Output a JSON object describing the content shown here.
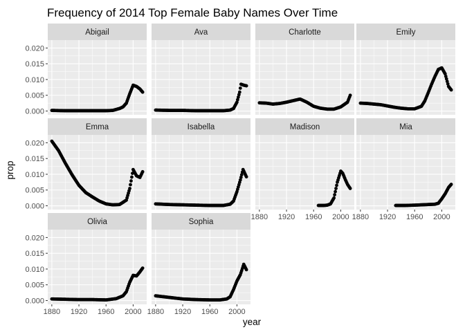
{
  "chart_data": {
    "type": "scatter",
    "title": "Frequency of 2014 Top Female Baby Names Over Time",
    "xlabel": "year",
    "ylabel": "prop",
    "xlim": [
      1874,
      2020
    ],
    "ylim": [
      -0.0012,
      0.0225
    ],
    "x_ticks": [
      1880,
      1920,
      1960,
      2000
    ],
    "x_tick_labels": [
      "1880",
      "1920",
      "1960",
      "2000"
    ],
    "y_ticks": [
      0,
      0.005,
      0.01,
      0.015,
      0.02
    ],
    "y_tick_labels": [
      "0.000",
      "0.005",
      "0.010",
      "0.015",
      "0.020"
    ],
    "facet_layout": {
      "ncol": 4,
      "nrow": 3
    },
    "grid": true,
    "colors": {
      "point": "#000000",
      "panel": "#ebebeb",
      "strip": "#d9d9d9",
      "grid": "#ffffff"
    },
    "facets": [
      {
        "name": "Abigail",
        "points": [
          [
            1880,
            0.0002
          ],
          [
            1900,
            0.0001
          ],
          [
            1920,
            0.0001
          ],
          [
            1940,
            0.0001
          ],
          [
            1960,
            0.0001
          ],
          [
            1970,
            0.0002
          ],
          [
            1980,
            0.0008
          ],
          [
            1985,
            0.0013
          ],
          [
            1990,
            0.0025
          ],
          [
            1995,
            0.0055
          ],
          [
            2000,
            0.0082
          ],
          [
            2005,
            0.0078
          ],
          [
            2010,
            0.007
          ],
          [
            2014,
            0.006
          ]
        ]
      },
      {
        "name": "Ava",
        "points": [
          [
            1880,
            0.0003
          ],
          [
            1900,
            0.0002
          ],
          [
            1920,
            0.0002
          ],
          [
            1940,
            0.0001
          ],
          [
            1960,
            0.0001
          ],
          [
            1980,
            0.0001
          ],
          [
            1990,
            0.0003
          ],
          [
            1995,
            0.0008
          ],
          [
            2000,
            0.0028
          ],
          [
            2004,
            0.006
          ],
          [
            2006,
            0.0085
          ],
          [
            2010,
            0.0082
          ],
          [
            2014,
            0.008
          ]
        ]
      },
      {
        "name": "Charlotte",
        "points": [
          [
            1880,
            0.0026
          ],
          [
            1890,
            0.0025
          ],
          [
            1900,
            0.0022
          ],
          [
            1910,
            0.0024
          ],
          [
            1920,
            0.0028
          ],
          [
            1930,
            0.0033
          ],
          [
            1940,
            0.0038
          ],
          [
            1950,
            0.0028
          ],
          [
            1960,
            0.0015
          ],
          [
            1970,
            0.0009
          ],
          [
            1980,
            0.0006
          ],
          [
            1990,
            0.0006
          ],
          [
            2000,
            0.0013
          ],
          [
            2010,
            0.0028
          ],
          [
            2014,
            0.005
          ]
        ]
      },
      {
        "name": "Emily",
        "points": [
          [
            1880,
            0.0025
          ],
          [
            1890,
            0.0024
          ],
          [
            1900,
            0.0022
          ],
          [
            1910,
            0.002
          ],
          [
            1920,
            0.0016
          ],
          [
            1930,
            0.0012
          ],
          [
            1940,
            0.0009
          ],
          [
            1950,
            0.0007
          ],
          [
            1960,
            0.0007
          ],
          [
            1970,
            0.0015
          ],
          [
            1975,
            0.0032
          ],
          [
            1980,
            0.0058
          ],
          [
            1985,
            0.0085
          ],
          [
            1990,
            0.011
          ],
          [
            1995,
            0.0132
          ],
          [
            2000,
            0.0137
          ],
          [
            2005,
            0.0118
          ],
          [
            2010,
            0.0078
          ],
          [
            2014,
            0.0067
          ]
        ]
      },
      {
        "name": "Emma",
        "points": [
          [
            1880,
            0.0205
          ],
          [
            1890,
            0.0175
          ],
          [
            1900,
            0.0135
          ],
          [
            1910,
            0.0098
          ],
          [
            1920,
            0.0065
          ],
          [
            1930,
            0.0042
          ],
          [
            1940,
            0.0028
          ],
          [
            1950,
            0.0015
          ],
          [
            1960,
            0.0006
          ],
          [
            1970,
            0.0003
          ],
          [
            1980,
            0.0004
          ],
          [
            1990,
            0.0018
          ],
          [
            1995,
            0.0055
          ],
          [
            2000,
            0.0115
          ],
          [
            2005,
            0.0095
          ],
          [
            2010,
            0.009
          ],
          [
            2014,
            0.0108
          ]
        ]
      },
      {
        "name": "Isabella",
        "points": [
          [
            1880,
            0.0006
          ],
          [
            1900,
            0.0004
          ],
          [
            1920,
            0.0003
          ],
          [
            1940,
            0.0002
          ],
          [
            1960,
            0.0001
          ],
          [
            1980,
            0.0001
          ],
          [
            1990,
            0.0005
          ],
          [
            1995,
            0.0015
          ],
          [
            2000,
            0.0045
          ],
          [
            2005,
            0.0082
          ],
          [
            2009,
            0.0115
          ],
          [
            2014,
            0.0092
          ]
        ]
      },
      {
        "name": "Madison",
        "points": [
          [
            1967,
            0.0001
          ],
          [
            1975,
            0.0001
          ],
          [
            1980,
            0.0002
          ],
          [
            1985,
            0.0006
          ],
          [
            1990,
            0.0025
          ],
          [
            1995,
            0.0075
          ],
          [
            2000,
            0.011
          ],
          [
            2003,
            0.0103
          ],
          [
            2007,
            0.0082
          ],
          [
            2010,
            0.0068
          ],
          [
            2014,
            0.0055
          ]
        ]
      },
      {
        "name": "Mia",
        "points": [
          [
            1932,
            0.0001
          ],
          [
            1945,
            0.0001
          ],
          [
            1960,
            0.0002
          ],
          [
            1970,
            0.0003
          ],
          [
            1980,
            0.0004
          ],
          [
            1990,
            0.0005
          ],
          [
            1995,
            0.0008
          ],
          [
            2000,
            0.0022
          ],
          [
            2005,
            0.0038
          ],
          [
            2010,
            0.0058
          ],
          [
            2014,
            0.0068
          ]
        ]
      },
      {
        "name": "Olivia",
        "points": [
          [
            1880,
            0.0005
          ],
          [
            1900,
            0.0004
          ],
          [
            1920,
            0.0003
          ],
          [
            1940,
            0.0003
          ],
          [
            1960,
            0.0002
          ],
          [
            1975,
            0.0006
          ],
          [
            1985,
            0.0015
          ],
          [
            1990,
            0.0028
          ],
          [
            1995,
            0.0058
          ],
          [
            2000,
            0.008
          ],
          [
            2005,
            0.0078
          ],
          [
            2010,
            0.0091
          ],
          [
            2014,
            0.0103
          ]
        ]
      },
      {
        "name": "Sophia",
        "points": [
          [
            1880,
            0.0015
          ],
          [
            1900,
            0.001
          ],
          [
            1920,
            0.0005
          ],
          [
            1940,
            0.0003
          ],
          [
            1960,
            0.0002
          ],
          [
            1975,
            0.0002
          ],
          [
            1985,
            0.0005
          ],
          [
            1990,
            0.0012
          ],
          [
            1995,
            0.0035
          ],
          [
            2000,
            0.0062
          ],
          [
            2005,
            0.0082
          ],
          [
            2010,
            0.0115
          ],
          [
            2014,
            0.0098
          ]
        ]
      }
    ]
  }
}
